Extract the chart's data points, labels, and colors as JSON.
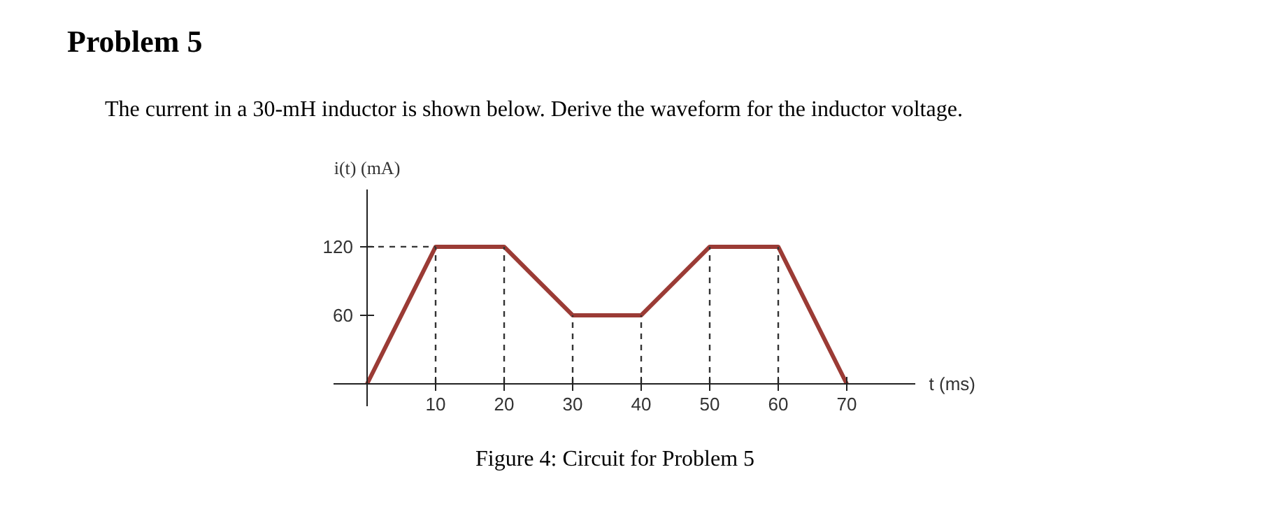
{
  "chart_data": {
    "type": "line",
    "title": "Problem 5",
    "subtitle": "The current in a 30-mH inductor is shown below. Derive the waveform for the inductor voltage.",
    "xlabel": "t (ms)",
    "ylabel": "i(t) (mA)",
    "annotations": [
      "Figure 4: Circuit for Problem 5"
    ],
    "x": [
      0,
      10,
      20,
      30,
      40,
      50,
      60,
      70
    ],
    "series": [
      {
        "color": "#9b3b35",
        "values": [
          0,
          120,
          120,
          60,
          60,
          120,
          120,
          0
        ]
      }
    ],
    "xlim": [
      -5,
      80
    ],
    "ylim": [
      -20,
      170
    ],
    "xticks": [
      10,
      20,
      30,
      40,
      50,
      60,
      70
    ],
    "yticks": [
      60,
      120
    ],
    "ref_lines": [
      {
        "axis": "y",
        "value": 120,
        "line_style": "dashed"
      },
      {
        "axis": "x",
        "value": 10,
        "line_style": "dashed"
      },
      {
        "axis": "x",
        "value": 20,
        "line_style": "dashed"
      },
      {
        "axis": "x",
        "value": 30,
        "line_style": "dashed"
      },
      {
        "axis": "x",
        "value": 40,
        "line_style": "dashed"
      },
      {
        "axis": "x",
        "value": 50,
        "line_style": "dashed"
      },
      {
        "axis": "x",
        "value": 60,
        "line_style": "dashed"
      }
    ],
    "grid": false,
    "line_style": "solid"
  }
}
